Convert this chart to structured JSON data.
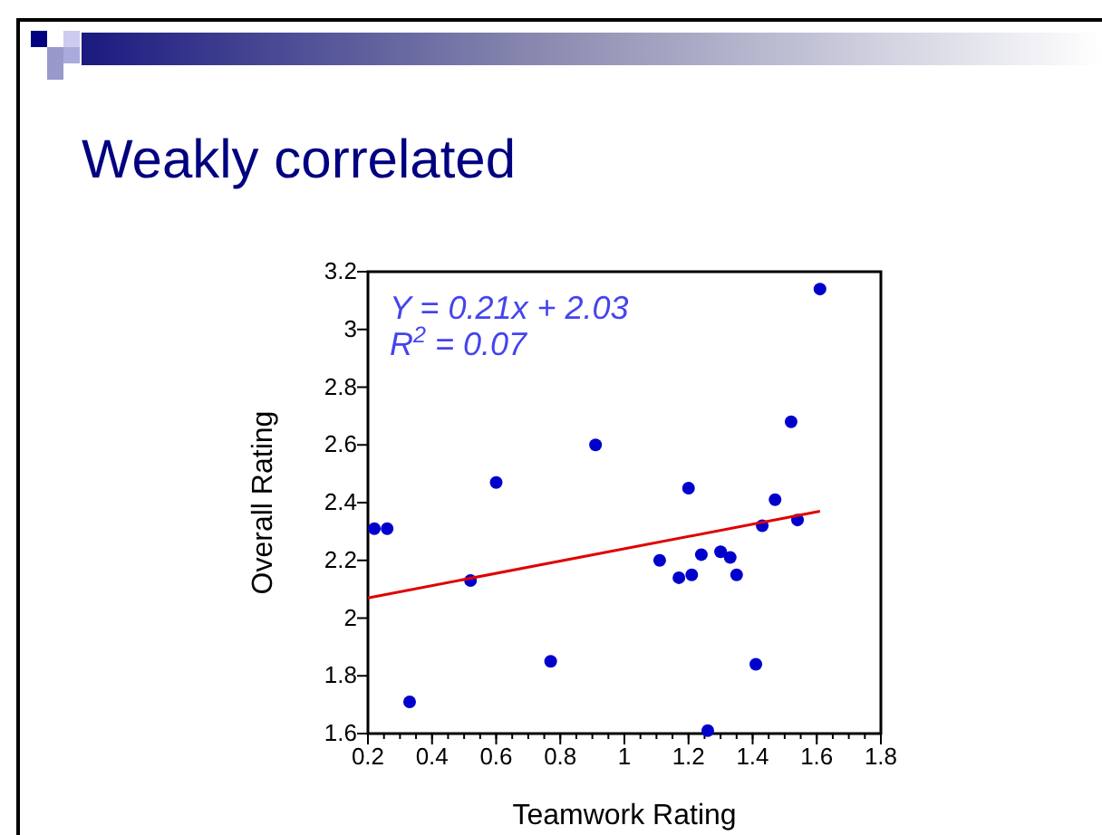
{
  "chart_data": {
    "type": "scatter",
    "title": "Weakly correlated",
    "xlabel": "Teamwork Rating",
    "ylabel": "Overall Rating",
    "annotations": [
      "Y = 0.21x + 2.03",
      "R$^{2}$ = 0.07"
    ],
    "xlim": [
      0.2,
      1.8
    ],
    "xticks": [
      0.2,
      0.4,
      0.6,
      0.8,
      1,
      1.2,
      1.4,
      1.6,
      1.8
    ],
    "ylim": [
      1.6,
      3.2
    ],
    "yticks": [
      1.6,
      1.8,
      2,
      2.2,
      2.4,
      2.6,
      2.8,
      3,
      3.2
    ],
    "grid": false,
    "series": [
      {
        "marker": "circle",
        "color": "#0000cc",
        "x": [
          0.22,
          0.26,
          0.33,
          0.52,
          0.6,
          0.77,
          0.91,
          1.11,
          1.17,
          1.2,
          1.21,
          1.24,
          1.26,
          1.3,
          1.33,
          1.35,
          1.41,
          1.43,
          1.47,
          1.52,
          1.54,
          1.61
        ],
        "values": [
          2.31,
          2.31,
          1.71,
          2.13,
          2.47,
          1.85,
          2.6,
          2.2,
          2.14,
          2.45,
          2.15,
          2.22,
          1.61,
          2.23,
          2.21,
          2.15,
          1.84,
          2.32,
          2.41,
          2.68,
          2.34,
          3.14
        ]
      },
      {
        "type": "line",
        "color": "#e00000",
        "x": [
          0.2,
          1.61
        ],
        "values": [
          2.07,
          2.37
        ]
      }
    ]
  }
}
